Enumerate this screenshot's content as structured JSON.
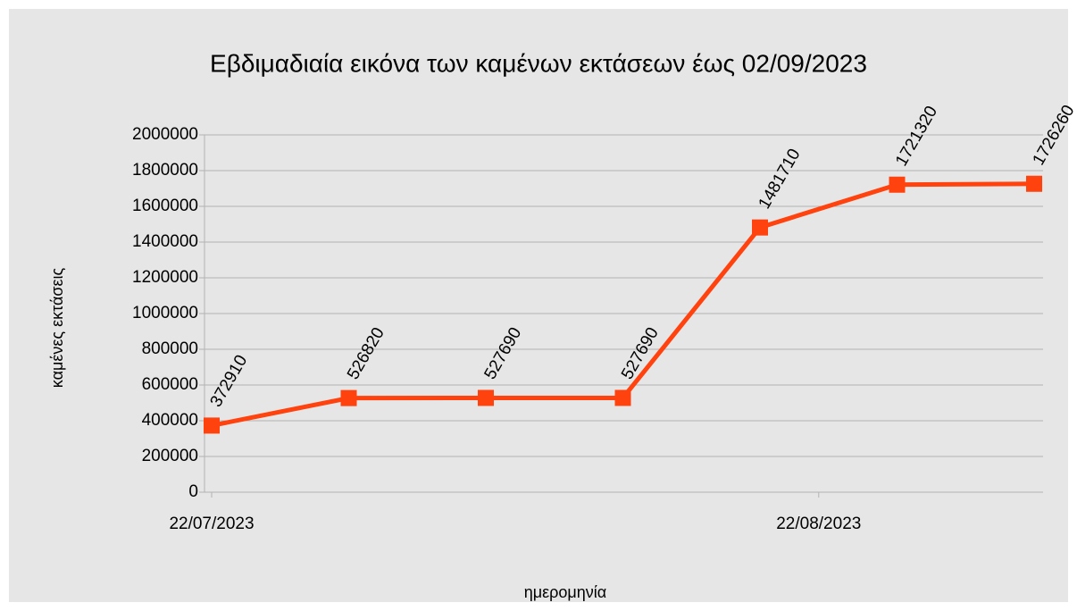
{
  "chart_data": {
    "type": "line",
    "title": "Εβδιμαδιαία εικόνα των καμένων εκτάσεων έως 02/09/2023",
    "xlabel": "ημερομηνία",
    "ylabel": "καμένες εκτάσεις",
    "x": [
      "22/07/2023",
      "29/07/2023",
      "05/08/2023",
      "12/08/2023",
      "19/08/2023",
      "26/08/2023",
      "02/09/2023"
    ],
    "series": [
      {
        "name": "καμένες εκτάσεις",
        "color": "#ff420e",
        "values": [
          372910,
          526820,
          527690,
          527690,
          1481710,
          1721320,
          1726260
        ]
      }
    ],
    "xlim": [
      "22/07/2023",
      "02/09/2023"
    ],
    "xticks": [
      "22/07/2023",
      "22/08/2023"
    ],
    "ylim": [
      0,
      2000000
    ],
    "yticks": [
      0,
      200000,
      400000,
      600000,
      800000,
      1000000,
      1200000,
      1400000,
      1600000,
      1800000,
      2000000
    ],
    "grid": true
  }
}
